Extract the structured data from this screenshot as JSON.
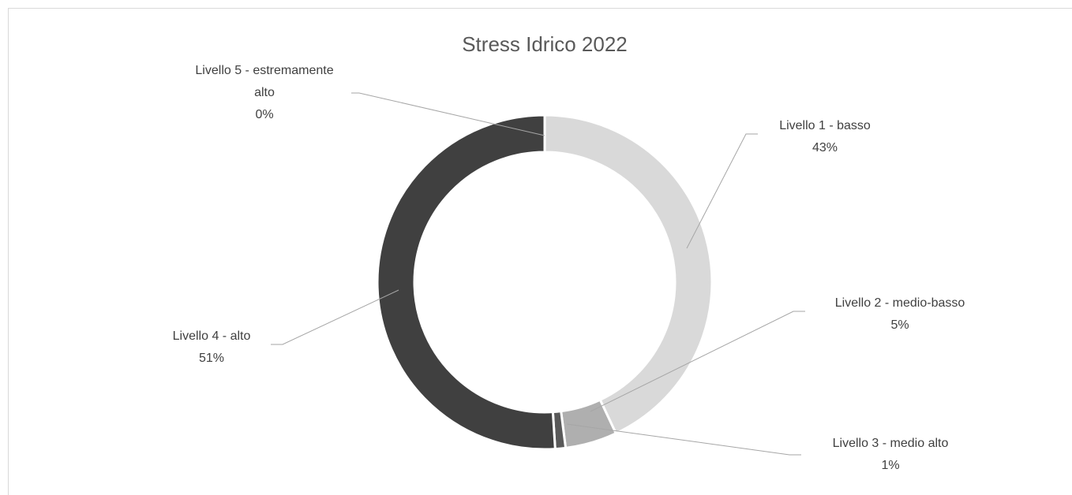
{
  "chart_data": {
    "type": "donut",
    "title": "Stress Idrico 2022",
    "categories": [
      "Livello 1 - basso",
      "Livello 2 - medio-basso",
      "Livello 3 - medio alto",
      "Livello 4 - alto",
      "Livello 5 - estremamente alto"
    ],
    "values": [
      43,
      5,
      1,
      51,
      0
    ],
    "value_labels": [
      "43%",
      "5%",
      "1%",
      "51%",
      "0%"
    ],
    "colors": [
      "#d9d9d9",
      "#afafaf",
      "#595959",
      "#404040",
      "#262626"
    ]
  }
}
